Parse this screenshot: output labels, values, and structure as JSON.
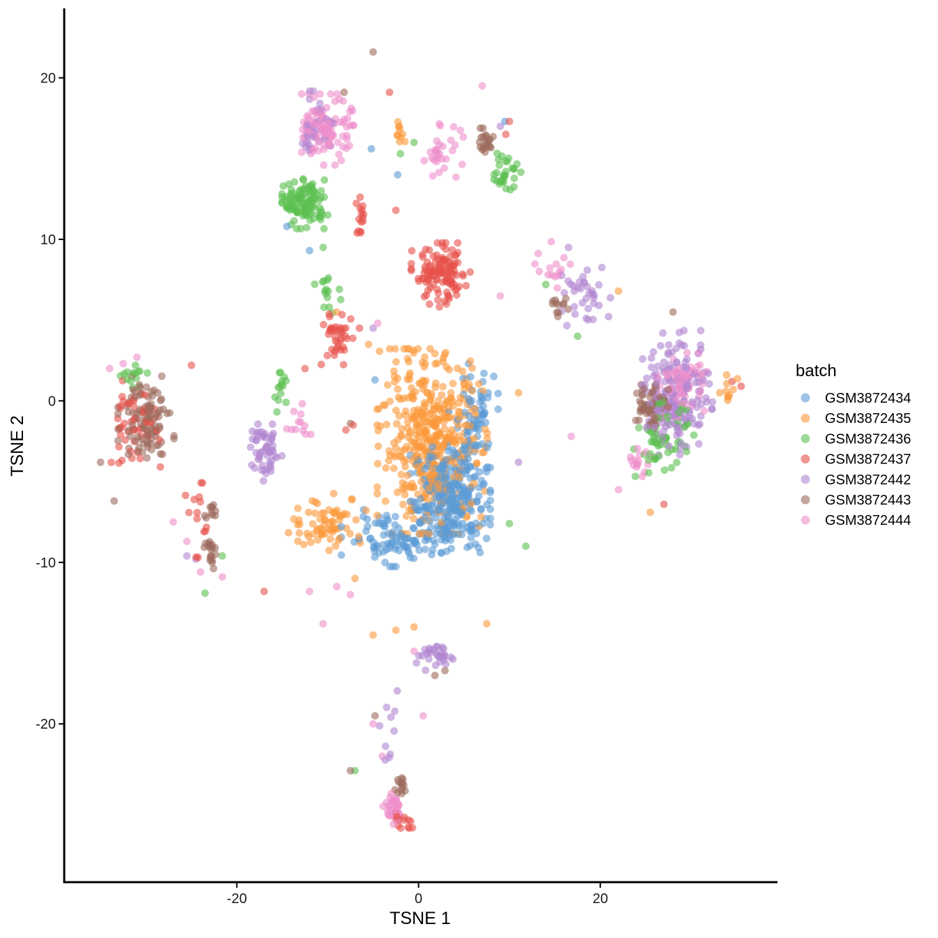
{
  "chart_data": {
    "type": "scatter",
    "xlabel": "TSNE 1",
    "ylabel": "TSNE 2",
    "xlim": [
      -39,
      39.5
    ],
    "ylim": [
      -29.8,
      24.3
    ],
    "x_ticks": [
      {
        "value": -20,
        "label": "-20"
      },
      {
        "value": 0,
        "label": "0"
      },
      {
        "value": 20,
        "label": "20"
      }
    ],
    "y_ticks": [
      {
        "value": 20,
        "label": "20"
      },
      {
        "value": 10,
        "label": "10"
      },
      {
        "value": 0,
        "label": "0"
      },
      {
        "value": -10,
        "label": "-10"
      },
      {
        "value": -20,
        "label": "-20"
      }
    ],
    "grid": false,
    "legend_title": "batch",
    "legend_position": "right",
    "point_opacity": 0.6,
    "series": [
      {
        "name": "GSM3872434",
        "color": "#5b9bd5",
        "clusters": [
          {
            "center": [
              3.5,
              -6.0
            ],
            "spread": [
              4.0,
              3.2
            ],
            "n": 320
          },
          {
            "center": [
              -3.0,
              -8.5
            ],
            "spread": [
              5.0,
              1.6
            ],
            "n": 90
          },
          {
            "center": [
              6.0,
              -1.0
            ],
            "spread": [
              2.5,
              3.0
            ],
            "n": 60
          }
        ],
        "points": [
          [
            -5.2,
            15.6
          ],
          [
            -2.3,
            14.0
          ],
          [
            -12.0,
            9.3
          ],
          [
            -14.5,
            10.8
          ],
          [
            -4.8,
            1.3
          ],
          [
            9.5,
            17.3
          ]
        ]
      },
      {
        "name": "GSM3872435",
        "color": "#fb9a3c",
        "clusters": [
          {
            "center": [
              1.5,
              -2.5
            ],
            "spread": [
              5.5,
              5.2
            ],
            "n": 440
          },
          {
            "center": [
              -10.0,
              -7.5
            ],
            "spread": [
              4.0,
              1.6
            ],
            "n": 70
          },
          {
            "center": [
              -2.0,
              16.5
            ],
            "spread": [
              1.0,
              0.7
            ],
            "n": 10
          },
          {
            "center": [
              34.0,
              0.5
            ],
            "spread": [
              1.0,
              1.0
            ],
            "n": 10
          }
        ],
        "points": [
          [
            -7.0,
            -11.0
          ],
          [
            -5.0,
            -14.5
          ],
          [
            -2.5,
            -14.2
          ],
          [
            -0.5,
            -14.0
          ],
          [
            7.5,
            -13.8
          ],
          [
            -9.0,
            5.5
          ],
          [
            -5.5,
            3.5
          ],
          [
            22.0,
            6.8
          ],
          [
            25.5,
            -6.9
          ],
          [
            11.0,
            0.5
          ]
        ]
      },
      {
        "name": "GSM3872436",
        "color": "#5cbf50",
        "clusters": [
          {
            "center": [
              -12.5,
              12.2
            ],
            "spread": [
              2.3,
              1.4
            ],
            "n": 120
          },
          {
            "center": [
              9.5,
              14.2
            ],
            "spread": [
              1.6,
              1.2
            ],
            "n": 30
          },
          {
            "center": [
              -15.2,
              0.8
            ],
            "spread": [
              0.8,
              1.5
            ],
            "n": 14
          },
          {
            "center": [
              -31.5,
              1.6
            ],
            "spread": [
              1.6,
              0.7
            ],
            "n": 14
          },
          {
            "center": [
              27.0,
              -2.5
            ],
            "spread": [
              3.0,
              2.2
            ],
            "n": 60
          },
          {
            "center": [
              -10.0,
              6.8
            ],
            "spread": [
              1.3,
              1.3
            ],
            "n": 15
          }
        ],
        "points": [
          [
            -23.5,
            -11.9
          ],
          [
            -21.6,
            -9.6
          ],
          [
            -7.0,
            -22.9
          ],
          [
            -2.0,
            15.3
          ],
          [
            -10.5,
            9.5
          ],
          [
            10.0,
            -7.6
          ],
          [
            11.8,
            -9.0
          ],
          [
            14.0,
            7.2
          ],
          [
            17.5,
            4.0
          ],
          [
            -0.5,
            16.0
          ]
        ]
      },
      {
        "name": "GSM3872437",
        "color": "#e8524b",
        "clusters": [
          {
            "center": [
              2.5,
              7.8
            ],
            "spread": [
              3.0,
              1.8
            ],
            "n": 120
          },
          {
            "center": [
              -9.0,
              3.8
            ],
            "spread": [
              1.6,
              1.8
            ],
            "n": 40
          },
          {
            "center": [
              -31.5,
              -1.5
            ],
            "spread": [
              2.8,
              2.5
            ],
            "n": 50
          },
          {
            "center": [
              -24.0,
              -7.5
            ],
            "spread": [
              1.5,
              2.2
            ],
            "n": 14
          },
          {
            "center": [
              -1.8,
              -26.0
            ],
            "spread": [
              1.2,
              0.6
            ],
            "n": 14
          },
          {
            "center": [
              -6.2,
              11.3
            ],
            "spread": [
              1.0,
              1.2
            ],
            "n": 15
          }
        ],
        "points": [
          [
            -3.2,
            19.1
          ],
          [
            -6.5,
            4.5
          ],
          [
            -7.2,
            -1.5
          ],
          [
            -8.0,
            -1.8
          ],
          [
            10.0,
            17.3
          ],
          [
            9.6,
            16.5
          ],
          [
            -2.5,
            11.8
          ],
          [
            -17.0,
            -11.8
          ],
          [
            -25.0,
            2.2
          ],
          [
            34.5,
            1.2
          ],
          [
            35.5,
            0.9
          ],
          [
            -12.5,
            2.0
          ],
          [
            27.0,
            -6.4
          ]
        ]
      },
      {
        "name": "GSM3872442",
        "color": "#b085d0",
        "clusters": [
          {
            "center": [
              28.5,
              0.5
            ],
            "spread": [
              3.5,
              3.5
            ],
            "n": 170
          },
          {
            "center": [
              -16.8,
              -3.2
            ],
            "spread": [
              1.6,
              1.6
            ],
            "n": 50
          },
          {
            "center": [
              2.0,
              -15.8
            ],
            "spread": [
              3.0,
              0.8
            ],
            "n": 30
          },
          {
            "center": [
              -11.5,
              17.2
            ],
            "spread": [
              2.0,
              1.8
            ],
            "n": 35
          },
          {
            "center": [
              18.5,
              6.5
            ],
            "spread": [
              2.5,
              2.0
            ],
            "n": 35
          },
          {
            "center": [
              -3.5,
              -20.5
            ],
            "spread": [
              1.2,
              3.0
            ],
            "n": 10
          }
        ],
        "points": [
          [
            -25.5,
            -9.6
          ],
          [
            -24.5,
            -9.8
          ],
          [
            -5.0,
            4.5
          ],
          [
            -16.8,
            -4.5
          ],
          [
            16.5,
            9.5
          ],
          [
            11.0,
            -3.8
          ],
          [
            9.0,
            17.0
          ]
        ]
      },
      {
        "name": "GSM3872443",
        "color": "#9c6b5e",
        "clusters": [
          {
            "center": [
              -30.0,
              -1.0
            ],
            "spread": [
              2.8,
              2.3
            ],
            "n": 100
          },
          {
            "center": [
              25.5,
              -0.2
            ],
            "spread": [
              1.8,
              1.5
            ],
            "n": 70
          },
          {
            "center": [
              -23.0,
              -9.5
            ],
            "spread": [
              0.6,
              1.4
            ],
            "n": 18
          },
          {
            "center": [
              7.2,
              16.0
            ],
            "spread": [
              1.2,
              0.8
            ],
            "n": 22
          },
          {
            "center": [
              -2.0,
              -23.8
            ],
            "spread": [
              0.8,
              0.6
            ],
            "n": 14
          },
          {
            "center": [
              -22.8,
              -6.8
            ],
            "spread": [
              0.8,
              0.6
            ],
            "n": 10
          },
          {
            "center": [
              15.5,
              5.8
            ],
            "spread": [
              1.0,
              0.8
            ],
            "n": 12
          }
        ],
        "points": [
          [
            -5.0,
            21.6
          ],
          [
            -8.2,
            19.1
          ],
          [
            -7.5,
            -22.9
          ],
          [
            -4.8,
            -19.5
          ],
          [
            1.8,
            -17.0
          ],
          [
            2.9,
            -16.7
          ],
          [
            -7.5,
            -1.4
          ],
          [
            -33.5,
            -6.2
          ],
          [
            -35.0,
            -3.8
          ],
          [
            28.0,
            5.5
          ]
        ]
      },
      {
        "name": "GSM3872444",
        "color": "#ef8fcc",
        "clusters": [
          {
            "center": [
              -10.0,
              16.8
            ],
            "spread": [
              2.6,
              2.0
            ],
            "n": 110
          },
          {
            "center": [
              2.5,
              15.5
            ],
            "spread": [
              2.2,
              1.5
            ],
            "n": 30
          },
          {
            "center": [
              29.0,
              1.0
            ],
            "spread": [
              2.5,
              1.8
            ],
            "n": 70
          },
          {
            "center": [
              -2.8,
              -25.2
            ],
            "spread": [
              1.0,
              1.0
            ],
            "n": 35
          },
          {
            "center": [
              24.0,
              -3.8
            ],
            "spread": [
              1.5,
              0.8
            ],
            "n": 15
          },
          {
            "center": [
              -13.0,
              -1.5
            ],
            "spread": [
              1.8,
              1.2
            ],
            "n": 12
          },
          {
            "center": [
              15.0,
              8.2
            ],
            "spread": [
              2.0,
              1.5
            ],
            "n": 15
          }
        ],
        "points": [
          [
            -32.5,
            2.3
          ],
          [
            -34.0,
            2.0
          ],
          [
            -31.0,
            2.7
          ],
          [
            -27.0,
            -7.5
          ],
          [
            -25.5,
            -8.7
          ],
          [
            -24.0,
            -10.6
          ],
          [
            -21.6,
            -10.9
          ],
          [
            -7.5,
            -12.0
          ],
          [
            -10.5,
            -13.8
          ],
          [
            -0.5,
            -15.5
          ],
          [
            0.5,
            -19.5
          ],
          [
            -4.0,
            -22.0
          ],
          [
            -5.0,
            -20.0
          ],
          [
            -9.0,
            -11.5
          ],
          [
            -12.0,
            -11.8
          ],
          [
            7.0,
            19.5
          ],
          [
            9.0,
            6.5
          ],
          [
            22.0,
            -5.5
          ],
          [
            16.8,
            -2.2
          ],
          [
            -4.5,
            4.8
          ]
        ]
      }
    ]
  }
}
